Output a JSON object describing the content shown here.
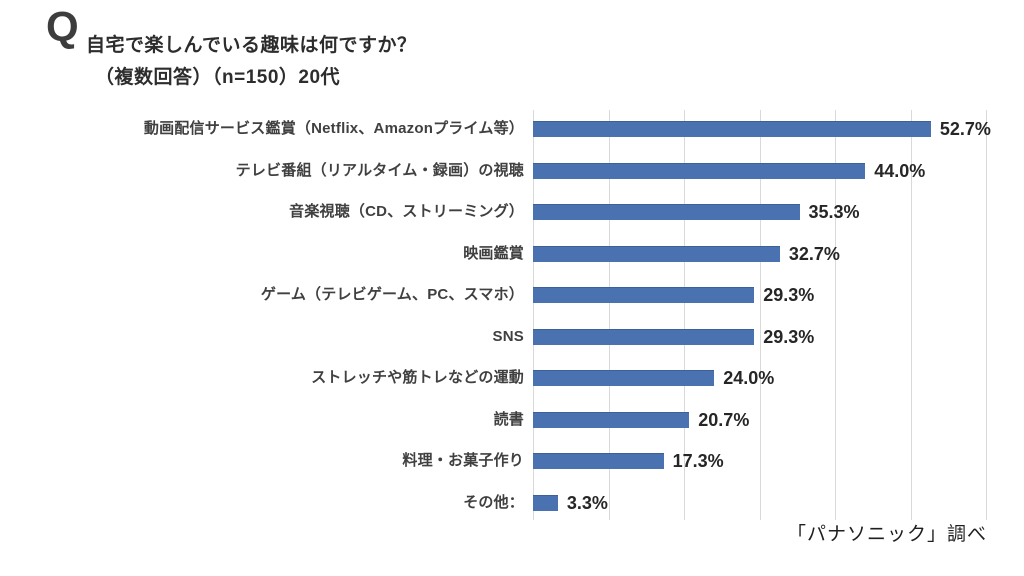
{
  "header": {
    "q_mark": "Q",
    "title_line1": "自宅で楽しんでいる趣味は何ですか？",
    "title_line2": "（複数回答）（n=150）20代"
  },
  "chart_data": {
    "type": "bar",
    "orientation": "horizontal",
    "categories": [
      "動画配信サービス鑑賞（Netflix、Amazonプライム等）",
      "テレビ番組（リアルタイム・録画）の視聴",
      "音楽視聴（CD、ストリーミング）",
      "映画鑑賞",
      "ゲーム（テレビゲーム、PC、スマホ）",
      "SNS",
      "ストレッチや筋トレなどの運動",
      "読書",
      "料理・お菓子作り",
      "その他："
    ],
    "values": [
      52.7,
      44.0,
      35.3,
      32.7,
      29.3,
      29.3,
      24.0,
      20.7,
      17.3,
      3.3
    ],
    "value_labels": [
      "52.7%",
      "44.0%",
      "35.3%",
      "32.7%",
      "29.3%",
      "29.3%",
      "24.0%",
      "20.7%",
      "17.3%",
      "3.3%"
    ],
    "title": "自宅で楽しんでいる趣味は何ですか？（複数回答）（n=150）20代",
    "xlabel": "",
    "ylabel": "",
    "xlim": [
      0,
      60
    ],
    "gridline_interval": 10,
    "grid": true,
    "legend": false,
    "bar_color": "#4a72b0",
    "gridline_color": "#d9d9d9"
  },
  "footer": {
    "source": "「パナソニック」調べ"
  }
}
